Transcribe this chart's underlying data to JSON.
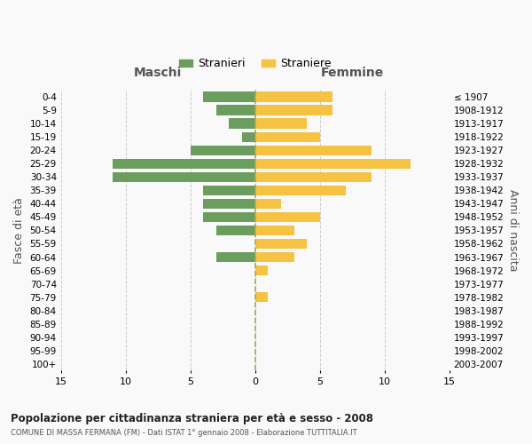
{
  "age_groups": [
    "0-4",
    "5-9",
    "10-14",
    "15-19",
    "20-24",
    "25-29",
    "30-34",
    "35-39",
    "40-44",
    "45-49",
    "50-54",
    "55-59",
    "60-64",
    "65-69",
    "70-74",
    "75-79",
    "80-84",
    "85-89",
    "90-94",
    "95-99",
    "100+"
  ],
  "birth_years": [
    "2003-2007",
    "1998-2002",
    "1993-1997",
    "1988-1992",
    "1983-1987",
    "1978-1982",
    "1973-1977",
    "1968-1972",
    "1963-1967",
    "1958-1962",
    "1953-1957",
    "1948-1952",
    "1943-1947",
    "1938-1942",
    "1933-1937",
    "1928-1932",
    "1923-1927",
    "1918-1922",
    "1913-1917",
    "1908-1912",
    "≤ 1907"
  ],
  "maschi": [
    4,
    3,
    2,
    1,
    5,
    11,
    11,
    4,
    4,
    4,
    3,
    0,
    3,
    0,
    0,
    0,
    0,
    0,
    0,
    0,
    0
  ],
  "femmine": [
    6,
    6,
    4,
    5,
    9,
    12,
    9,
    7,
    2,
    5,
    3,
    4,
    3,
    1,
    0,
    1,
    0,
    0,
    0,
    0,
    0
  ],
  "maschi_color": "#6b9e5e",
  "femmine_color": "#f5c242",
  "title": "Popolazione per cittadinanza straniera per età e sesso - 2008",
  "subtitle": "COMUNE DI MASSA FERMANA (FM) - Dati ISTAT 1° gennaio 2008 - Elaborazione TUTTITALIA.IT",
  "xlabel_left": "Maschi",
  "xlabel_right": "Femmine",
  "ylabel_left": "Fasce di età",
  "ylabel_right": "Anni di nascita",
  "legend_stranieri": "Stranieri",
  "legend_straniere": "Straniere",
  "xlim": 15,
  "background_color": "#f9f9f9",
  "grid_color": "#cccccc"
}
